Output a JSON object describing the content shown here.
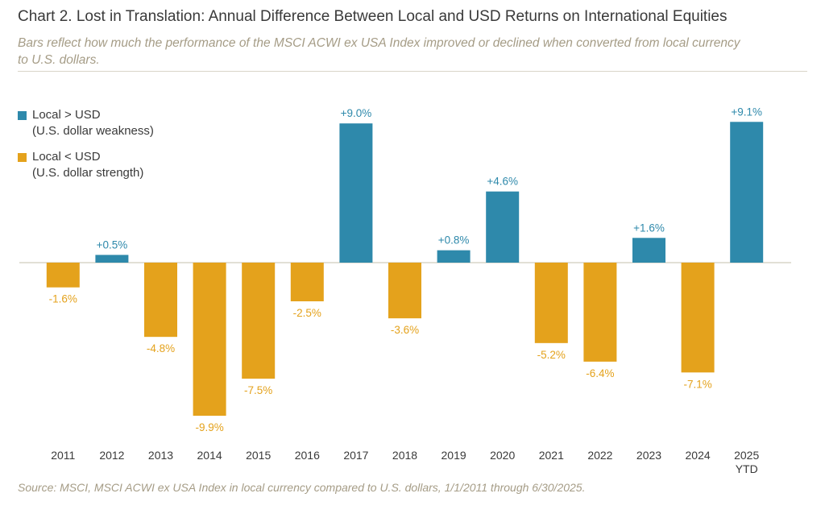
{
  "header": {
    "title": "Chart 2. Lost in Translation: Annual Difference Between Local and USD Returns on International Equities",
    "subtitle": "Bars reflect how much the performance of the MSCI ACWI ex USA Index improved or declined when converted from local currency to U.S. dollars."
  },
  "legend": {
    "positive": {
      "line1": "Local > USD",
      "line2": "(U.S. dollar weakness)"
    },
    "negative": {
      "line1": "Local < USD",
      "line2": "(U.S. dollar strength)"
    }
  },
  "colors": {
    "positive": "#2e89ab",
    "negative": "#e4a21c",
    "zero_line": "#d9d5c8"
  },
  "chart_data": {
    "type": "bar",
    "title": "Chart 2. Lost in Translation: Annual Difference Between Local and USD Returns on International Equities",
    "xlabel": "",
    "ylabel": "",
    "ylim": [
      -9.9,
      9.1
    ],
    "categories": [
      "2011",
      "2012",
      "2013",
      "2014",
      "2015",
      "2016",
      "2017",
      "2018",
      "2019",
      "2020",
      "2021",
      "2022",
      "2023",
      "2024",
      "2025 YTD"
    ],
    "values": [
      -1.6,
      0.5,
      -4.8,
      -9.9,
      -7.5,
      -2.5,
      9.0,
      -3.6,
      0.8,
      4.6,
      -5.2,
      -6.4,
      1.6,
      -7.1,
      9.1
    ],
    "data_labels": [
      "-1.6%",
      "+0.5%",
      "-4.8%",
      "-9.9%",
      "-7.5%",
      "-2.5%",
      "+9.0%",
      "-3.6%",
      "+0.8%",
      "+4.6%",
      "-5.2%",
      "-6.4%",
      "+1.6%",
      "-7.1%",
      "+9.1%"
    ],
    "grid": false
  },
  "footer": {
    "source": "Source: MSCI, MSCI ACWI ex USA Index in local currency compared to U.S. dollars, 1/1/2011 through 6/30/2025."
  }
}
